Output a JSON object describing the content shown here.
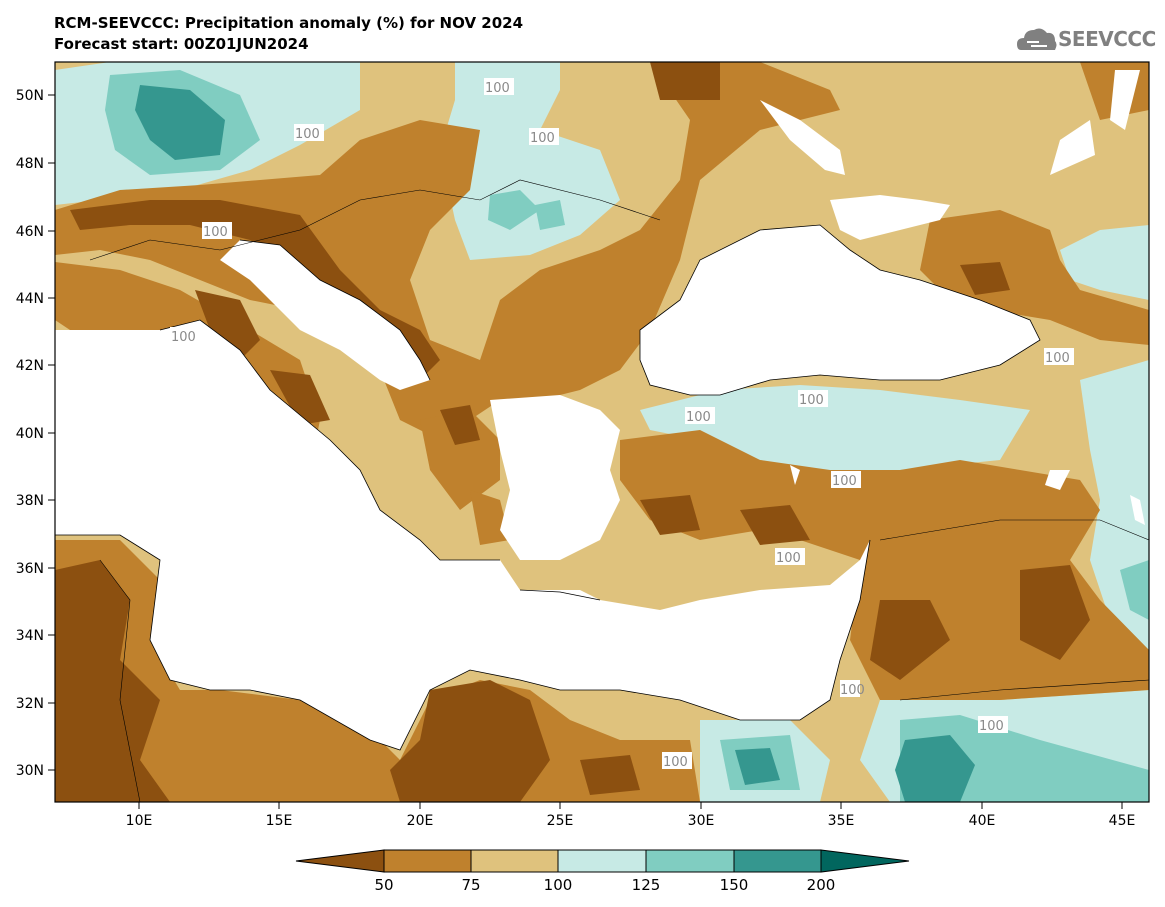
{
  "header": {
    "title": "RCM-SEEVCCC: Precipitation anomaly (%) for NOV 2024",
    "subtitle": "Forecast start: 00Z01JUN2024",
    "logo_text": "SEEVCCC"
  },
  "axes": {
    "lat_labels": [
      "50N",
      "48N",
      "46N",
      "44N",
      "42N",
      "40N",
      "38N",
      "36N",
      "34N",
      "32N",
      "30N"
    ],
    "lon_labels": [
      "10E",
      "15E",
      "20E",
      "25E",
      "30E",
      "35E",
      "40E",
      "45E"
    ]
  },
  "contour_labels": [
    "100",
    "100",
    "100",
    "100",
    "100",
    "100",
    "100",
    "100",
    "100",
    "100",
    "100",
    "100",
    "100"
  ],
  "colorbar": {
    "ticks": [
      "50",
      "75",
      "100",
      "125",
      "150",
      "200"
    ],
    "colors": [
      "#8c5010",
      "#bf812d",
      "#dfc27d",
      "#c7eae5",
      "#80cdc1",
      "#35978f",
      "#01665e"
    ]
  }
}
